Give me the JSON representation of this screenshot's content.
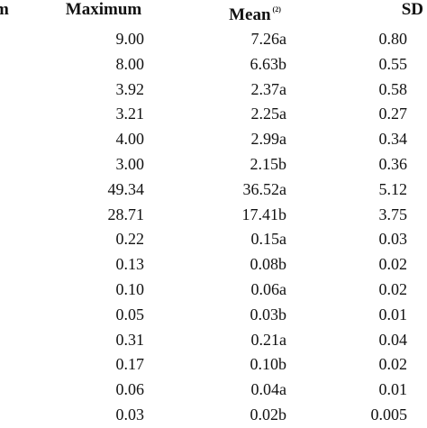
{
  "header": {
    "first_fragment": "m",
    "maximum": "Maximum",
    "mean": "Mean",
    "mean_note": "(2)",
    "sd": "SD"
  },
  "rows": [
    {
      "maximum": "9.00",
      "mean": "7.26a",
      "sd": "0.80"
    },
    {
      "maximum": "8.00",
      "mean": "6.63b",
      "sd": "0.55"
    },
    {
      "maximum": "3.92",
      "mean": "2.37a",
      "sd": "0.58"
    },
    {
      "maximum": "3.21",
      "mean": "2.25a",
      "sd": "0.27"
    },
    {
      "maximum": "4.00",
      "mean": "2.99a",
      "sd": "0.34"
    },
    {
      "maximum": "3.00",
      "mean": "2.15b",
      "sd": "0.36"
    },
    {
      "maximum": "49.34",
      "mean": "36.52a",
      "sd": "5.12"
    },
    {
      "maximum": "28.71",
      "mean": "17.41b",
      "sd": "3.75"
    },
    {
      "maximum": "0.22",
      "mean": "0.15a",
      "sd": "0.03"
    },
    {
      "maximum": "0.13",
      "mean": "0.08b",
      "sd": "0.02"
    },
    {
      "maximum": "0.10",
      "mean": "0.06a",
      "sd": "0.02"
    },
    {
      "maximum": "0.05",
      "mean": "0.03b",
      "sd": "0.01"
    },
    {
      "maximum": "0.31",
      "mean": "0.21a",
      "sd": "0.04"
    },
    {
      "maximum": "0.17",
      "mean": "0.10b",
      "sd": "0.02"
    },
    {
      "maximum": "0.06",
      "mean": "0.04a",
      "sd": "0.01"
    },
    {
      "maximum": "0.03",
      "mean": "0.02b",
      "sd": "0.005"
    }
  ]
}
